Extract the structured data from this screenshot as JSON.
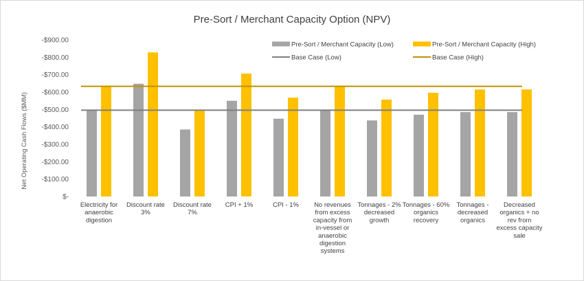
{
  "chart_data": {
    "type": "bar",
    "title": "Pre-Sort / Merchant Capacity Option (NPV)",
    "ylabel": "Net Operating Cash Flows ($MM)",
    "xlabel": "",
    "ylim": [
      0,
      900
    ],
    "yticks": [
      0,
      100,
      200,
      300,
      400,
      500,
      600,
      700,
      800,
      900
    ],
    "ytick_labels": [
      "$-",
      "-$100.00",
      "-$200.00",
      "-$300.00",
      "-$400.00",
      "-$500.00",
      "-$600.00",
      "-$700.00",
      "-$800.00",
      "-$900.00"
    ],
    "grid": false,
    "legend_position": "top-right",
    "categories": [
      [
        "Electricity for",
        "anaerobic",
        "digestion"
      ],
      [
        "Discount rate",
        "3%"
      ],
      [
        "Discount rate",
        "7%"
      ],
      [
        "CPI + 1%"
      ],
      [
        "CPI - 1%"
      ],
      [
        "No revenues",
        "from excess",
        "capacity from",
        "in-vessel or",
        "anaerobic",
        "digestion",
        "systems"
      ],
      [
        "Tonnages - 2%",
        "decreased",
        "growth"
      ],
      [
        "Tonnages - 60%",
        "organics",
        "recovery"
      ],
      [
        "Tonnages -",
        "decreased",
        "organics"
      ],
      [
        "Decreased",
        "organics + no",
        "rev from",
        "excess capacity",
        "sale"
      ]
    ],
    "series": [
      {
        "name": "Pre-Sort / Merchant Capacity (Low)",
        "color": "#a5a5a5",
        "values": [
          495,
          648,
          385,
          550,
          447,
          497,
          437,
          470,
          485,
          485
        ]
      },
      {
        "name": "Pre-Sort / Merchant Capacity (High)",
        "color": "#ffc000",
        "values": [
          633,
          828,
          495,
          706,
          568,
          630,
          557,
          596,
          615,
          615
        ]
      }
    ],
    "reference_lines": [
      {
        "name": "Base Case (Low)",
        "color": "#7f7f7f",
        "value": 496
      },
      {
        "name": "Base Case (High)",
        "color": "#bf9000",
        "value": 633
      }
    ]
  }
}
